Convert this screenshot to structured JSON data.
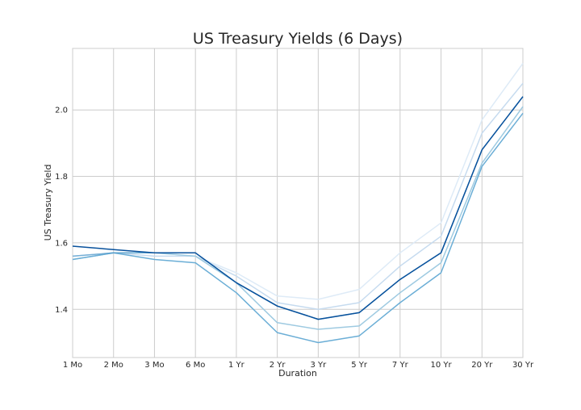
{
  "chart_data": {
    "type": "line",
    "title": "US Treasury Yields (6 Days)",
    "xlabel": "Duration",
    "ylabel": "US Treasury Yield",
    "categories": [
      "1 Mo",
      "2 Mo",
      "3 Mo",
      "6 Mo",
      "1 Yr",
      "2 Yr",
      "3 Yr",
      "5 Yr",
      "7 Yr",
      "10 Yr",
      "20 Yr",
      "30 Yr"
    ],
    "ylim": [
      1.255,
      2.185
    ],
    "yticks": [
      1.4,
      1.6,
      1.8,
      2.0
    ],
    "ytick_labels": [
      "1.4",
      "1.6",
      "1.8",
      "2.0"
    ],
    "grid": true,
    "series": [
      {
        "values": [
          1.56,
          1.57,
          1.57,
          1.56,
          1.51,
          1.44,
          1.43,
          1.46,
          1.57,
          1.66,
          1.97,
          2.14
        ],
        "color": "#deebf7",
        "opacity": 1.0
      },
      {
        "values": [
          1.56,
          1.57,
          1.56,
          1.56,
          1.5,
          1.42,
          1.4,
          1.42,
          1.53,
          1.62,
          1.93,
          2.08
        ],
        "color": "#c6dbef",
        "opacity": 1.0
      },
      {
        "values": [
          1.55,
          1.57,
          1.57,
          1.56,
          1.48,
          1.36,
          1.34,
          1.35,
          1.45,
          1.54,
          1.84,
          2.01
        ],
        "color": "#9ecae1",
        "opacity": 1.0
      },
      {
        "values": [
          1.55,
          1.57,
          1.55,
          1.54,
          1.45,
          1.33,
          1.3,
          1.32,
          1.42,
          1.51,
          1.83,
          1.99
        ],
        "color": "#6baed6",
        "opacity": 1.0
      },
      {
        "values": [
          1.56,
          1.57,
          1.57,
          1.57,
          1.48,
          1.41,
          1.37,
          1.39,
          1.49,
          1.57,
          1.88,
          2.04
        ],
        "color": "#4292c6",
        "opacity": 0.6
      },
      {
        "values": [
          1.59,
          1.58,
          1.57,
          1.57,
          1.48,
          1.41,
          1.37,
          1.39,
          1.49,
          1.57,
          1.88,
          2.04
        ],
        "color": "#08519c",
        "opacity": 1.0
      }
    ]
  }
}
